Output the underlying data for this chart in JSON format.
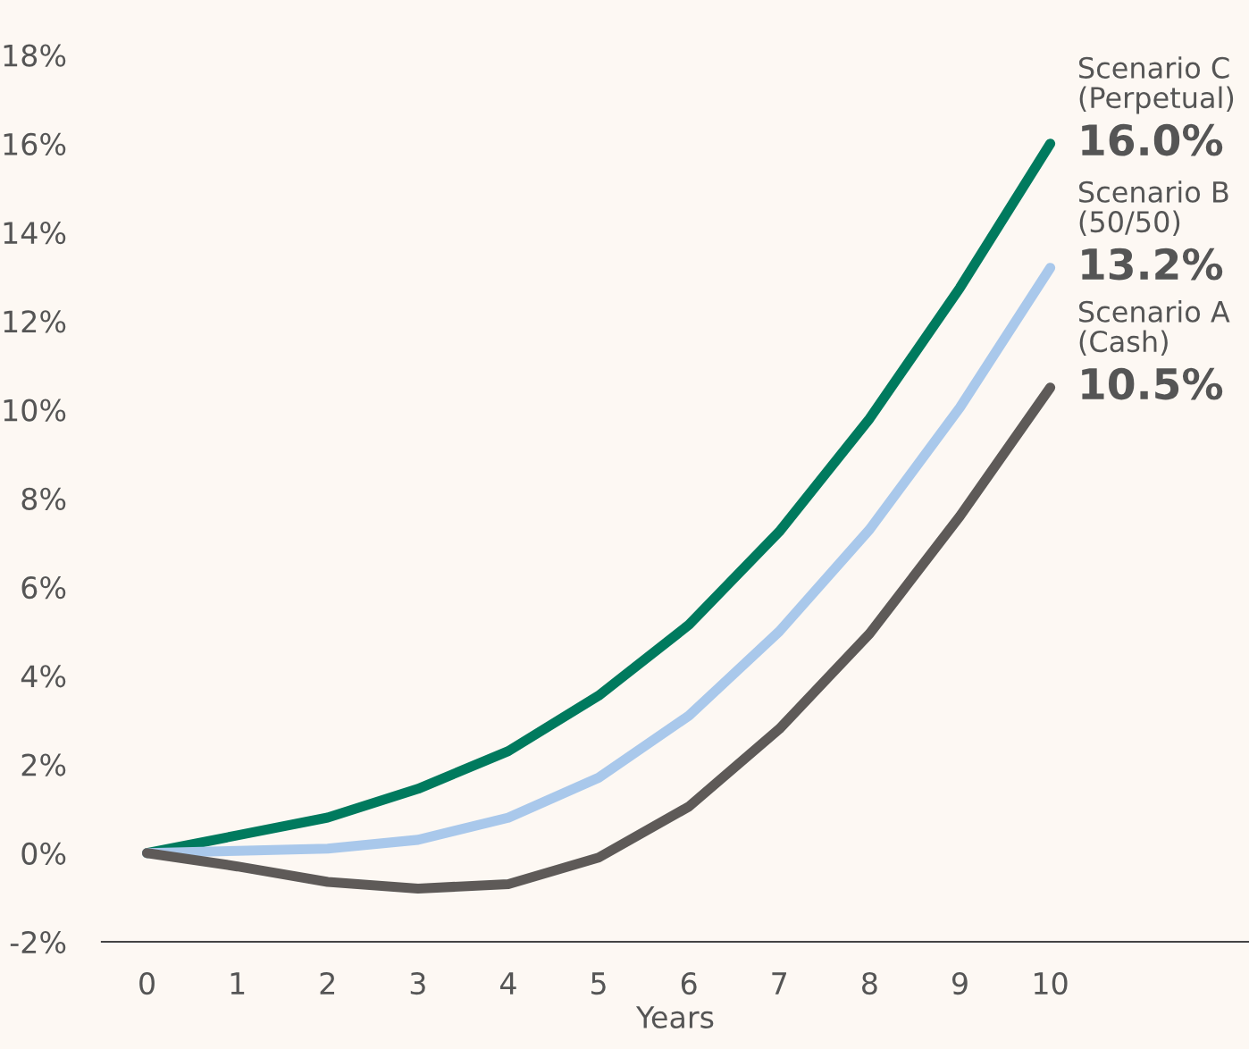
{
  "chart_data": {
    "type": "line",
    "xlabel": "Years",
    "x": [
      0,
      1,
      2,
      3,
      4,
      5,
      6,
      7,
      8,
      9,
      10
    ],
    "xlim": [
      -0.5,
      12.2
    ],
    "xticks": [
      0,
      1,
      2,
      3,
      4,
      5,
      6,
      7,
      8,
      9,
      10
    ],
    "ylim": [
      -2,
      19.2
    ],
    "yticks": [
      {
        "value": -2,
        "label": "-2%"
      },
      {
        "value": 0,
        "label": "0%"
      },
      {
        "value": 2,
        "label": "2%"
      },
      {
        "value": 4,
        "label": "4%"
      },
      {
        "value": 6,
        "label": "6%"
      },
      {
        "value": 8,
        "label": "8%"
      },
      {
        "value": 10,
        "label": "10%"
      },
      {
        "value": 12,
        "label": "12%"
      },
      {
        "value": 14,
        "label": "14%"
      },
      {
        "value": 16,
        "label": "16%"
      },
      {
        "value": 18,
        "label": "18%"
      }
    ],
    "grid": false,
    "marker": "none",
    "line_style": "solid",
    "series": [
      {
        "name": "Scenario C\n(Perpetual)",
        "color": "#007a5e",
        "values": [
          0,
          0.4,
          0.8,
          1.45,
          2.3,
          3.55,
          5.15,
          7.25,
          9.8,
          12.75,
          16.0
        ],
        "value_labels": [
          null,
          null,
          null,
          null,
          null,
          null,
          null,
          null,
          null,
          null,
          "16.0%"
        ]
      },
      {
        "name": "Scenario B\n(50/50)",
        "color": "#a9c8eb",
        "values": [
          0,
          0.05,
          0.1,
          0.3,
          0.8,
          1.7,
          3.1,
          5.0,
          7.3,
          10.05,
          13.2
        ],
        "value_labels": [
          null,
          null,
          null,
          null,
          null,
          null,
          null,
          null,
          null,
          null,
          "13.2%"
        ]
      },
      {
        "name": "Scenario A\n(Cash)",
        "color": "#5e5a58",
        "values": [
          0,
          -0.3,
          -0.65,
          -0.8,
          -0.7,
          -0.1,
          1.05,
          2.8,
          4.95,
          7.6,
          10.5
        ],
        "value_labels": [
          null,
          null,
          null,
          null,
          null,
          null,
          null,
          null,
          null,
          null,
          "10.5%"
        ]
      }
    ]
  }
}
